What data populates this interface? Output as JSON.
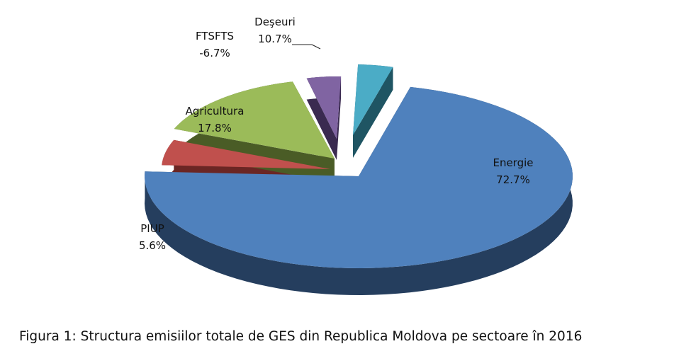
{
  "chart_data": {
    "type": "pie",
    "title": "",
    "slices": [
      {
        "name": "Energie",
        "label_text": "72.7%",
        "value": 72.7,
        "color": "#4f81bd",
        "side": "#253e5e"
      },
      {
        "name": "PIUP",
        "label_text": "5.6%",
        "value": 5.6,
        "color": "#c0504d",
        "side": "#6b2624"
      },
      {
        "name": "Agricultura",
        "label_text": "17.8%",
        "value": 17.8,
        "color": "#9bbb59",
        "side": "#4a5c26"
      },
      {
        "name": "FTSFTS",
        "label_text": "-6.7%",
        "value": -6.7,
        "color": "#8064a2",
        "side": "#3a2a50"
      },
      {
        "name": "Deşeuri",
        "label_text": "10.7%",
        "value": 10.7,
        "color": "#4bacc6",
        "side": "#1f5563"
      }
    ]
  },
  "caption": {
    "lead": "Figura 1:",
    "text": " Structura emisiilor totale de GES din Republica Moldova pe sectoare în 2016"
  }
}
